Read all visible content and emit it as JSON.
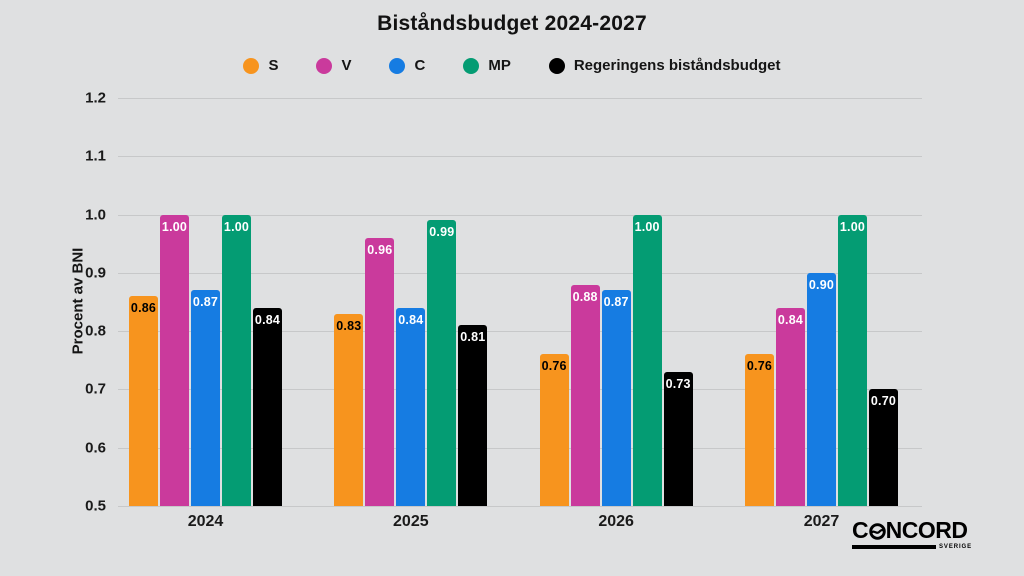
{
  "chart_data": {
    "type": "bar",
    "title": "Biståndsbudget 2024-2027",
    "ylabel": "Procent av BNI",
    "xlabel": "",
    "categories": [
      "2024",
      "2025",
      "2026",
      "2027"
    ],
    "series": [
      {
        "name": "S",
        "color": "#f7941e",
        "value_text_color": "#000000",
        "values": [
          0.86,
          0.83,
          0.76,
          0.76
        ]
      },
      {
        "name": "V",
        "color": "#ca3a9c",
        "value_text_color": "#ffffff",
        "values": [
          1.0,
          0.96,
          0.88,
          0.84
        ]
      },
      {
        "name": "C",
        "color": "#167ce2",
        "value_text_color": "#ffffff",
        "values": [
          0.87,
          0.84,
          0.87,
          0.9
        ]
      },
      {
        "name": "MP",
        "color": "#049c73",
        "value_text_color": "#ffffff",
        "values": [
          1.0,
          0.99,
          1.0,
          1.0
        ]
      },
      {
        "name": "Regeringens biståndsbudget",
        "color": "#000000",
        "value_text_color": "#ffffff",
        "values": [
          0.84,
          0.81,
          0.73,
          0.7
        ]
      }
    ],
    "ylim": [
      0.5,
      1.2
    ],
    "yticks": [
      1.2,
      1.1,
      1.0,
      0.9,
      0.8,
      0.7,
      0.6,
      0.5
    ],
    "grid": true,
    "legend_position": "top",
    "value_labels": "inside-top",
    "background_color": "#dfe0e1",
    "gridline_color": "#c7c8c9"
  },
  "logo": {
    "brand": "CONCORD",
    "sub": "SVERIGE"
  }
}
